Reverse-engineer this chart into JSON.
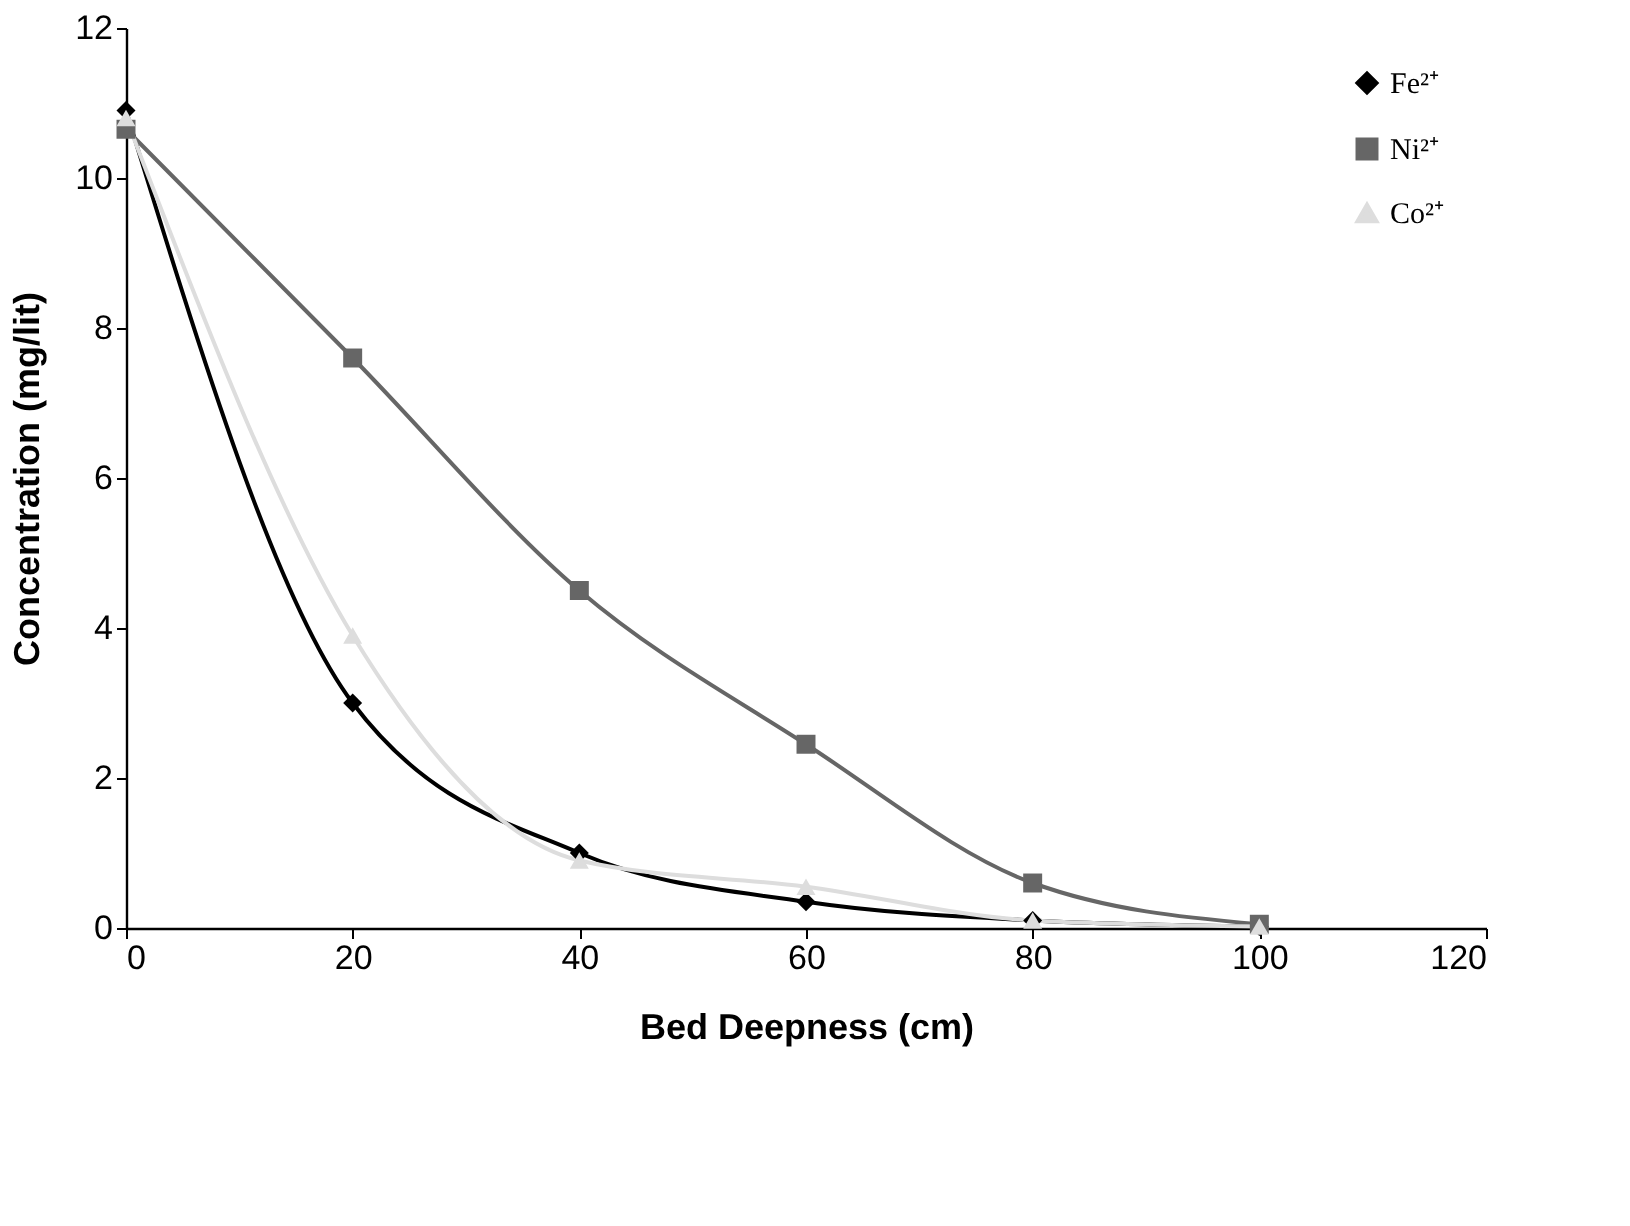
{
  "chart_data": {
    "type": "line",
    "xlabel": "Bed Deepness (cm)",
    "ylabel": "Concentration (mg/lit)",
    "x": [
      0,
      20,
      40,
      60,
      80,
      100
    ],
    "series": [
      {
        "name": "Fe²⁺",
        "color": "#000000",
        "marker": "diamond",
        "values": [
          10.9,
          3.0,
          1.0,
          0.35,
          0.1,
          0.02
        ]
      },
      {
        "name": "Ni²⁺",
        "color": "#666666",
        "marker": "square",
        "values": [
          10.65,
          7.6,
          4.5,
          2.45,
          0.6,
          0.05
        ]
      },
      {
        "name": "Co²⁺",
        "color": "#dddddd",
        "marker": "triangle",
        "values": [
          10.8,
          3.9,
          0.9,
          0.55,
          0.1,
          0.02
        ]
      }
    ],
    "xlim": [
      0,
      120
    ],
    "xticks": [
      0,
      20,
      40,
      60,
      80,
      100,
      120
    ],
    "ylim": [
      0,
      12
    ],
    "yticks": [
      0,
      2,
      4,
      6,
      8,
      10,
      12
    ],
    "grid": false,
    "legend": "top right",
    "line_style": "solid"
  }
}
